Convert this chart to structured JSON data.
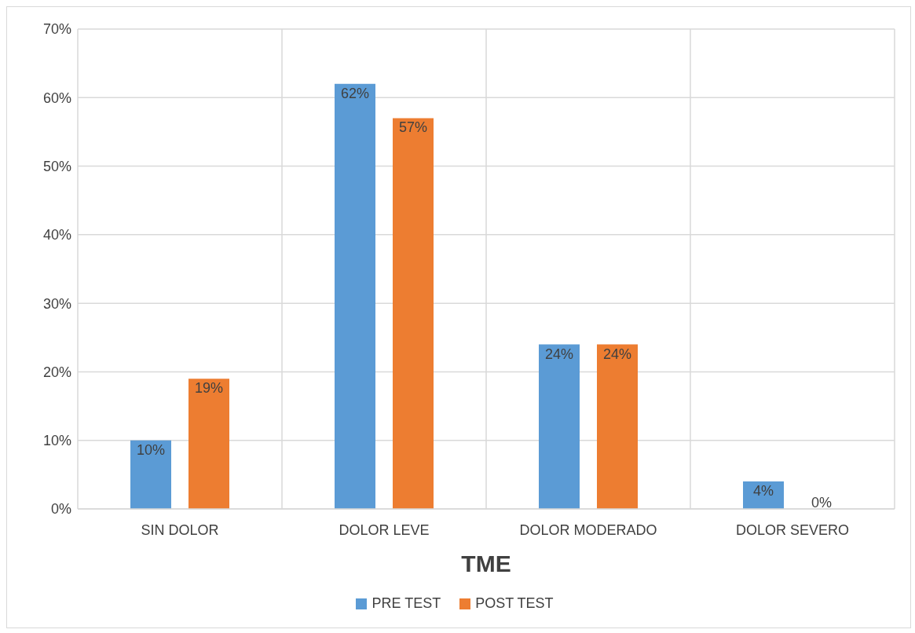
{
  "chart_data": {
    "type": "bar",
    "xlabel": "TME",
    "categories": [
      "SIN DOLOR",
      "DOLOR LEVE",
      "DOLOR MODERADO",
      "DOLOR SEVERO"
    ],
    "series": [
      {
        "name": "PRE TEST",
        "color": "#5b9bd5",
        "values": [
          10,
          62,
          24,
          4
        ],
        "value_labels": [
          "10%",
          "62%",
          "24%",
          "4%"
        ]
      },
      {
        "name": "POST TEST",
        "color": "#ed7d31",
        "values": [
          19,
          57,
          24,
          0
        ],
        "value_labels": [
          "19%",
          "57%",
          "24%",
          "0%"
        ]
      }
    ],
    "ylim": [
      0,
      70
    ],
    "yticks": [
      {
        "value": 0,
        "label": "0%"
      },
      {
        "value": 10,
        "label": "10%"
      },
      {
        "value": 20,
        "label": "20%"
      },
      {
        "value": 30,
        "label": "30%"
      },
      {
        "value": 40,
        "label": "40%"
      },
      {
        "value": 50,
        "label": "50%"
      },
      {
        "value": 60,
        "label": "60%"
      },
      {
        "value": 70,
        "label": "70%"
      }
    ],
    "grid": true,
    "legend": "bottom"
  }
}
